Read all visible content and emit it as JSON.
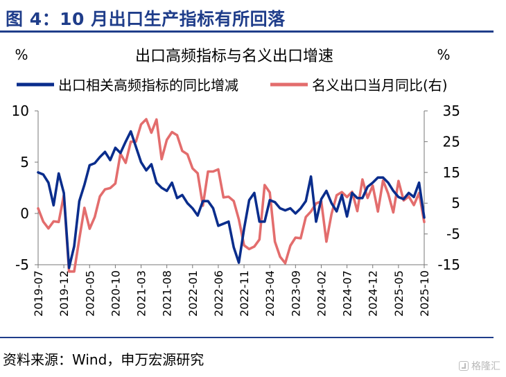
{
  "header": {
    "figure_title": "图 4：10 月出口生产指标有所回落"
  },
  "footer": {
    "source": "资料来源：Wind，申万宏源研究",
    "watermark": "格隆汇"
  },
  "colors": {
    "title_blue": "#1f3d8a",
    "series_blue": "#0a2d8c",
    "series_red": "#e36d6d"
  },
  "chart_data": {
    "type": "line",
    "title": "出口高频指标与名义出口增速",
    "left_unit": "%",
    "right_unit": "%",
    "legend_position": "top",
    "grid": false,
    "x_tick_labels": [
      "2019-07",
      "2019-12",
      "2020-05",
      "2020-10",
      "2021-03",
      "2021-08",
      "2022-01",
      "2022-06",
      "2022-11",
      "2023-04",
      "2023-09",
      "2024-02",
      "2024-07",
      "2024-12",
      "2025-05",
      "2025-10"
    ],
    "y_left": {
      "min": -5,
      "max": 10,
      "ticks": [
        10,
        5,
        0,
        -5
      ]
    },
    "y_right": {
      "min": -15,
      "max": 35,
      "ticks": [
        35,
        25,
        15,
        5,
        -5,
        -15
      ]
    },
    "series": [
      {
        "name": "出口相关高频指标的同比增减",
        "axis": "left",
        "x": [
          "2019-07",
          "2019-08",
          "2019-09",
          "2019-10",
          "2019-11",
          "2019-12",
          "2020-01",
          "2020-02",
          "2020-03",
          "2020-04",
          "2020-05",
          "2020-06",
          "2020-07",
          "2020-08",
          "2020-09",
          "2020-10",
          "2020-11",
          "2020-12",
          "2021-01",
          "2021-02",
          "2021-03",
          "2021-04",
          "2021-05",
          "2021-06",
          "2021-07",
          "2021-08",
          "2021-09",
          "2021-10",
          "2021-11",
          "2021-12",
          "2022-01",
          "2022-02",
          "2022-03",
          "2022-04",
          "2022-05",
          "2022-06",
          "2022-07",
          "2022-08",
          "2022-09",
          "2022-10",
          "2022-11",
          "2022-12",
          "2023-01",
          "2023-02",
          "2023-03",
          "2023-04",
          "2023-05",
          "2023-06",
          "2023-07",
          "2023-08",
          "2023-09",
          "2023-10",
          "2023-11",
          "2023-12",
          "2024-01",
          "2024-02",
          "2024-03",
          "2024-04",
          "2024-05",
          "2024-06",
          "2024-07",
          "2024-08",
          "2024-09",
          "2024-10",
          "2024-11",
          "2024-12",
          "2025-01",
          "2025-02",
          "2025-03",
          "2025-04",
          "2025-05",
          "2025-06",
          "2025-07",
          "2025-08",
          "2025-09",
          "2025-10"
        ],
        "values": [
          4.0,
          3.8,
          3.0,
          0.8,
          3.9,
          2.0,
          -5.3,
          -3.2,
          1.2,
          2.8,
          4.7,
          4.9,
          5.5,
          6.0,
          5.2,
          6.4,
          5.9,
          7.0,
          8.0,
          6.5,
          5.0,
          4.2,
          4.8,
          3.0,
          2.5,
          2.2,
          3.0,
          1.5,
          1.8,
          1.0,
          0.5,
          -0.2,
          1.2,
          1.2,
          0.5,
          -1.2,
          -1.0,
          -0.8,
          -3.3,
          -4.8,
          -1.5,
          1.3,
          2.0,
          -0.8,
          -0.8,
          1.3,
          1.1,
          0.5,
          0.3,
          0.5,
          0.0,
          0.5,
          1.2,
          3.6,
          -0.8,
          1.4,
          2.2,
          1.0,
          0.2,
          1.8,
          -0.3,
          2.0,
          1.5,
          1.5,
          2.6,
          3.0,
          3.5,
          3.5,
          3.0,
          2.2,
          1.6,
          1.4,
          2.0,
          1.6,
          3.0,
          -0.4
        ]
      },
      {
        "name": "名义出口当月同比(右)",
        "axis": "right",
        "x": [
          "2019-07",
          "2019-08",
          "2019-09",
          "2019-10",
          "2019-11",
          "2019-12",
          "2020-01",
          "2020-02",
          "2020-03",
          "2020-04",
          "2020-05",
          "2020-06",
          "2020-07",
          "2020-08",
          "2020-09",
          "2020-10",
          "2020-11",
          "2020-12",
          "2021-01",
          "2021-02",
          "2021-03",
          "2021-04",
          "2021-05",
          "2021-06",
          "2021-07",
          "2021-08",
          "2021-09",
          "2021-10",
          "2021-11",
          "2021-12",
          "2022-01",
          "2022-02",
          "2022-03",
          "2022-04",
          "2022-05",
          "2022-06",
          "2022-07",
          "2022-08",
          "2022-09",
          "2022-10",
          "2022-11",
          "2022-12",
          "2023-01",
          "2023-02",
          "2023-03",
          "2023-04",
          "2023-05",
          "2023-06",
          "2023-07",
          "2023-08",
          "2023-09",
          "2023-10",
          "2023-11",
          "2023-12",
          "2024-01",
          "2024-02",
          "2024-03",
          "2024-04",
          "2024-05",
          "2024-06",
          "2024-07",
          "2024-08",
          "2024-09",
          "2024-10",
          "2024-11",
          "2024-12",
          "2025-01",
          "2025-02",
          "2025-03",
          "2025-04",
          "2025-05",
          "2025-06",
          "2025-07",
          "2025-08",
          "2025-09",
          "2025-10"
        ],
        "values": [
          3.3,
          -1.0,
          -3.2,
          -0.9,
          -1.1,
          7.6,
          -17.2,
          -17.2,
          -6.6,
          3.5,
          -3.3,
          0.5,
          7.2,
          9.5,
          9.9,
          11.4,
          21.1,
          18.1,
          25.0,
          25.0,
          30.6,
          32.3,
          27.9,
          32.2,
          19.3,
          25.6,
          28.1,
          27.1,
          22.0,
          20.9,
          16.3,
          14.7,
          4.2,
          15.3,
          15.3,
          16.0,
          6.9,
          7.1,
          5.7,
          -0.3,
          -8.7,
          -9.9,
          -9.1,
          -6.8,
          10.9,
          8.5,
          -7.5,
          -12.4,
          -14.5,
          -8.8,
          -6.2,
          -6.4,
          0.5,
          2.3,
          4.9,
          5.6,
          -7.5,
          1.5,
          7.6,
          8.6,
          7.0,
          8.7,
          2.4,
          12.7,
          6.7,
          10.7,
          2.3,
          12.4,
          8.1,
          2.0,
          12.2,
          5.9,
          7.2,
          4.4,
          8.3,
          -1.1
        ]
      }
    ]
  }
}
